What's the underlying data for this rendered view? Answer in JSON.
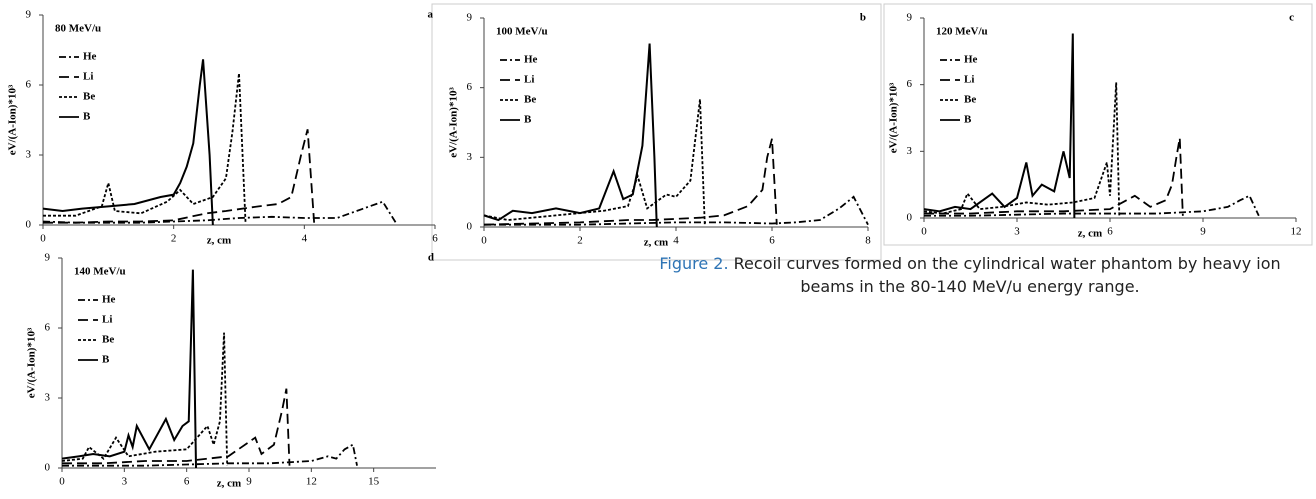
{
  "chart_data": [
    {
      "type": "line",
      "title": "80 MeV/u",
      "panel": "a",
      "xlabel": "z, cm",
      "ylabel": "eV/(A-Ion)*10³",
      "xlim": [
        0,
        6
      ],
      "ylim": [
        0,
        9
      ],
      "xticks": [
        0,
        2,
        4,
        6
      ],
      "yticks": [
        0,
        3,
        6,
        9
      ],
      "series": [
        {
          "name": "He",
          "color": "#000000",
          "line_style": "dash-dot",
          "x": [
            0,
            0.5,
            1,
            1.5,
            2,
            2.5,
            3,
            3.5,
            4,
            4.5,
            4.9,
            5.2,
            5.4
          ],
          "values": [
            0.15,
            0.1,
            0.1,
            0.1,
            0.15,
            0.2,
            0.3,
            0.35,
            0.3,
            0.3,
            0.7,
            1.0,
            0.1
          ]
        },
        {
          "name": "Li",
          "color": "#000000",
          "line_style": "dash",
          "x": [
            0,
            0.5,
            1,
            1.5,
            2,
            2.5,
            2.8,
            3.3,
            3.6,
            3.8,
            3.95,
            4.05,
            4.15
          ],
          "values": [
            0.1,
            0.1,
            0.15,
            0.15,
            0.2,
            0.5,
            0.6,
            0.8,
            0.9,
            1.2,
            3.0,
            4.1,
            0.1
          ]
        },
        {
          "name": "Be",
          "color": "#000000",
          "line_style": "dot",
          "x": [
            0,
            0.5,
            0.9,
            1.0,
            1.1,
            1.5,
            1.9,
            2.1,
            2.3,
            2.6,
            2.8,
            2.9,
            3.0,
            3.1
          ],
          "values": [
            0.4,
            0.4,
            0.8,
            1.8,
            0.6,
            0.5,
            1.0,
            1.5,
            0.9,
            1.2,
            2.0,
            4.0,
            6.5,
            0.1
          ]
        },
        {
          "name": "B",
          "color": "#000000",
          "line_style": "solid",
          "x": [
            0,
            0.3,
            0.6,
            1.0,
            1.4,
            1.8,
            2.0,
            2.1,
            2.2,
            2.3,
            2.4,
            2.45,
            2.55,
            2.6
          ],
          "values": [
            0.7,
            0.6,
            0.7,
            0.8,
            0.9,
            1.2,
            1.3,
            1.8,
            2.5,
            3.5,
            6.0,
            7.1,
            3.0,
            0.0
          ]
        }
      ]
    },
    {
      "type": "line",
      "title": "100 MeV/u",
      "panel": "b",
      "xlabel": "z, cm",
      "ylabel": "eV/(A-Ion)*10³",
      "xlim": [
        0,
        8
      ],
      "ylim": [
        0,
        9
      ],
      "xticks": [
        0,
        2,
        4,
        6,
        8
      ],
      "yticks": [
        0,
        3,
        6,
        9
      ],
      "series": [
        {
          "name": "He",
          "color": "#000000",
          "line_style": "dash-dot",
          "x": [
            0,
            1,
            2,
            3,
            4,
            5,
            6,
            6.5,
            7,
            7.4,
            7.7,
            8.0
          ],
          "values": [
            0.1,
            0.1,
            0.1,
            0.15,
            0.2,
            0.2,
            0.15,
            0.2,
            0.3,
            0.8,
            1.3,
            0.1
          ]
        },
        {
          "name": "Li",
          "color": "#000000",
          "line_style": "dash",
          "x": [
            0,
            1,
            2,
            3,
            3.5,
            4,
            4.5,
            5,
            5.5,
            5.8,
            5.9,
            6.0,
            6.1
          ],
          "values": [
            0.1,
            0.15,
            0.2,
            0.3,
            0.3,
            0.35,
            0.4,
            0.5,
            0.9,
            1.6,
            3.0,
            3.8,
            0.1
          ]
        },
        {
          "name": "Be",
          "color": "#000000",
          "line_style": "dot",
          "x": [
            0,
            0.5,
            1,
            1.5,
            2,
            2.5,
            3.0,
            3.2,
            3.4,
            3.8,
            4.0,
            4.3,
            4.5,
            4.6
          ],
          "values": [
            0.5,
            0.3,
            0.4,
            0.5,
            0.6,
            0.7,
            0.9,
            2.2,
            0.8,
            1.4,
            1.3,
            2.0,
            5.5,
            0.1
          ]
        },
        {
          "name": "B",
          "color": "#000000",
          "line_style": "solid",
          "x": [
            0,
            0.3,
            0.6,
            1.0,
            1.5,
            2.0,
            2.4,
            2.7,
            2.9,
            3.1,
            3.3,
            3.45,
            3.55,
            3.6
          ],
          "values": [
            0.5,
            0.3,
            0.7,
            0.6,
            0.8,
            0.6,
            0.8,
            2.4,
            1.2,
            1.4,
            3.5,
            7.9,
            3.0,
            0.0
          ]
        }
      ]
    },
    {
      "type": "line",
      "title": "120 MeV/u",
      "panel": "c",
      "xlabel": "z, cm",
      "ylabel": "eV/(A-Ion)*10³",
      "xlim": [
        0,
        12
      ],
      "ylim": [
        0,
        9
      ],
      "xticks": [
        0,
        3,
        6,
        9,
        12
      ],
      "yticks": [
        0,
        3,
        6,
        9
      ],
      "series": [
        {
          "name": "He",
          "color": "#000000",
          "line_style": "dash-dot",
          "x": [
            0,
            1.5,
            3,
            4.5,
            6,
            7.5,
            9,
            9.8,
            10.2,
            10.5,
            10.8
          ],
          "values": [
            0.1,
            0.1,
            0.15,
            0.2,
            0.2,
            0.2,
            0.3,
            0.5,
            0.8,
            1.0,
            0.1
          ]
        },
        {
          "name": "Li",
          "color": "#000000",
          "line_style": "dash",
          "x": [
            0,
            1.5,
            3,
            4.5,
            6,
            6.8,
            7.3,
            7.8,
            8.0,
            8.15,
            8.25,
            8.35
          ],
          "values": [
            0.2,
            0.2,
            0.3,
            0.3,
            0.4,
            1.0,
            0.5,
            0.8,
            1.5,
            2.8,
            3.6,
            0.1
          ]
        },
        {
          "name": "Be",
          "color": "#000000",
          "line_style": "dot",
          "x": [
            0,
            0.6,
            1.2,
            1.4,
            1.8,
            2.5,
            3.3,
            4.0,
            4.8,
            5.5,
            5.9,
            6.0,
            6.2,
            6.3
          ],
          "values": [
            0.3,
            0.2,
            0.4,
            1.1,
            0.4,
            0.5,
            0.7,
            0.6,
            0.7,
            0.9,
            2.5,
            1.0,
            6.1,
            0.1
          ]
        },
        {
          "name": "B",
          "color": "#000000",
          "line_style": "solid",
          "x": [
            0,
            0.5,
            1.0,
            1.5,
            2.2,
            2.6,
            3.0,
            3.3,
            3.5,
            3.8,
            4.2,
            4.5,
            4.7,
            4.8,
            4.85
          ],
          "values": [
            0.4,
            0.3,
            0.5,
            0.4,
            1.1,
            0.5,
            0.9,
            2.5,
            1.0,
            1.5,
            1.2,
            3.0,
            1.8,
            8.3,
            0.0
          ]
        }
      ]
    },
    {
      "type": "line",
      "title": "140 MeV/u",
      "panel": "d",
      "xlabel": "z, cm",
      "ylabel": "eV/(A-Ion)*10³",
      "xlim": [
        0,
        18
      ],
      "ylim": [
        0,
        9
      ],
      "xticks": [
        0,
        3,
        6,
        9,
        12,
        15
      ],
      "yticks": [
        0,
        3,
        6,
        9
      ],
      "series": [
        {
          "name": "He",
          "color": "#000000",
          "line_style": "dash-dot",
          "x": [
            0,
            2,
            4,
            6,
            8,
            10,
            12,
            12.8,
            13.2,
            13.6,
            14.0,
            14.2
          ],
          "values": [
            0.1,
            0.1,
            0.1,
            0.15,
            0.2,
            0.2,
            0.3,
            0.5,
            0.4,
            0.8,
            1.0,
            0.1
          ]
        },
        {
          "name": "Li",
          "color": "#000000",
          "line_style": "dash",
          "x": [
            0,
            2,
            4,
            6,
            8,
            9.3,
            9.6,
            10.2,
            10.6,
            10.8,
            10.95
          ],
          "values": [
            0.2,
            0.2,
            0.3,
            0.3,
            0.5,
            1.3,
            0.6,
            1.0,
            2.5,
            3.4,
            0.1
          ]
        },
        {
          "name": "Be",
          "color": "#000000",
          "line_style": "dot",
          "x": [
            0,
            1.0,
            1.3,
            2.0,
            2.6,
            3.2,
            4.5,
            6.0,
            7.0,
            7.3,
            7.6,
            7.8,
            7.95
          ],
          "values": [
            0.3,
            0.4,
            0.9,
            0.4,
            1.3,
            0.5,
            0.7,
            0.8,
            1.8,
            1.0,
            2.0,
            5.8,
            0.1
          ]
        },
        {
          "name": "B",
          "color": "#000000",
          "line_style": "solid",
          "x": [
            0,
            0.8,
            1.5,
            2.3,
            3.0,
            3.2,
            3.4,
            3.6,
            4.2,
            5.0,
            5.4,
            5.8,
            6.1,
            6.3,
            6.45
          ],
          "values": [
            0.4,
            0.5,
            0.6,
            0.5,
            0.7,
            1.4,
            0.9,
            1.8,
            0.8,
            2.1,
            1.2,
            1.8,
            2.0,
            8.5,
            0.0
          ]
        }
      ]
    }
  ],
  "caption": {
    "label": "Figure 2.",
    "text": "Recoil curves formed on the cylindrical water phantom by heavy ion beams in the 80-140 MeV/u energy range."
  }
}
